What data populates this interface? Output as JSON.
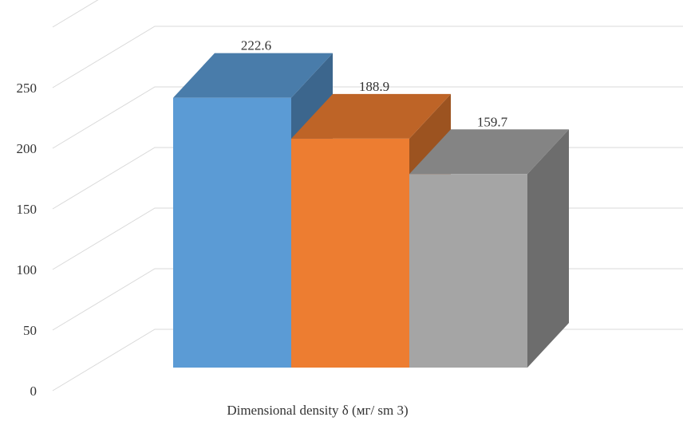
{
  "chart_data": {
    "type": "bar",
    "style": "3d-clustered-column",
    "categories": [
      ""
    ],
    "series": [
      {
        "values": [
          222.6
        ],
        "color": "#5b9bd5"
      },
      {
        "values": [
          188.9
        ],
        "color": "#ed7d31"
      },
      {
        "values": [
          159.7
        ],
        "color": "#a5a5a5"
      }
    ],
    "data_labels": [
      "222.6",
      "188.9",
      "159.7"
    ],
    "title": "",
    "xlabel": "Dimensional density δ (мг/ sm 3)",
    "ylabel": "",
    "ylim": [
      0,
      300
    ],
    "yticks": [
      0,
      50,
      100,
      150,
      200,
      250
    ],
    "ytick_labels": [
      "0",
      "50",
      "100",
      "150",
      "200",
      "250"
    ],
    "grid": true,
    "legend": "none"
  }
}
